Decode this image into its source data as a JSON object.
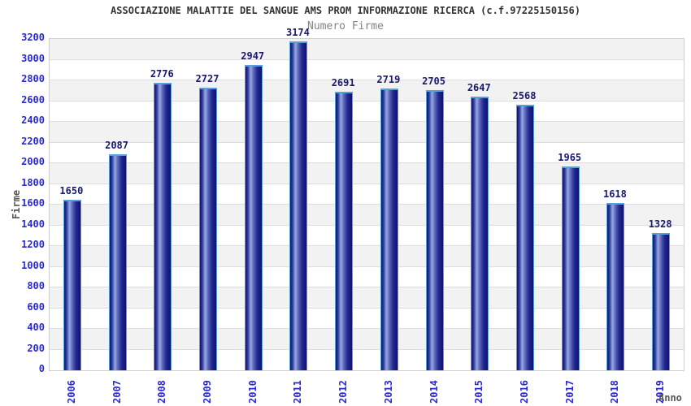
{
  "chart_data": {
    "type": "bar",
    "title": "ASSOCIAZIONE MALATTIE DEL SANGUE AMS PROM INFORMAZIONE RICERCA (c.f.97225150156)",
    "subtitle": "Numero Firme",
    "xlabel": "Anno",
    "ylabel": "Firme",
    "categories": [
      "2006",
      "2007",
      "2008",
      "2009",
      "2010",
      "2011",
      "2012",
      "2013",
      "2014",
      "2015",
      "2016",
      "2017",
      "2018",
      "2019"
    ],
    "values": [
      1650,
      2087,
      2776,
      2727,
      2947,
      3174,
      2691,
      2719,
      2705,
      2647,
      2568,
      1965,
      1618,
      1328
    ],
    "ylim": [
      0,
      3200
    ],
    "ytick_step": 200,
    "grid": "horizontal alternating bands, gridline every 200",
    "legend": "none",
    "bar_labels_shown": true,
    "x_tick_rotation_degrees": -90,
    "colors": {
      "title": "#333333",
      "subtitle": "#848484",
      "tick_label": "#2929d6",
      "value_label": "#191970",
      "axis_label": "#555555",
      "bar_dark": "#101070",
      "bar_highlight": "#9aa8e2",
      "bar_border": "#56a0dc",
      "band_white": "#ffffff",
      "band_gray": "#f2f2f2",
      "gridline": "#dedede",
      "plot_border": "#cfcfcf"
    }
  }
}
